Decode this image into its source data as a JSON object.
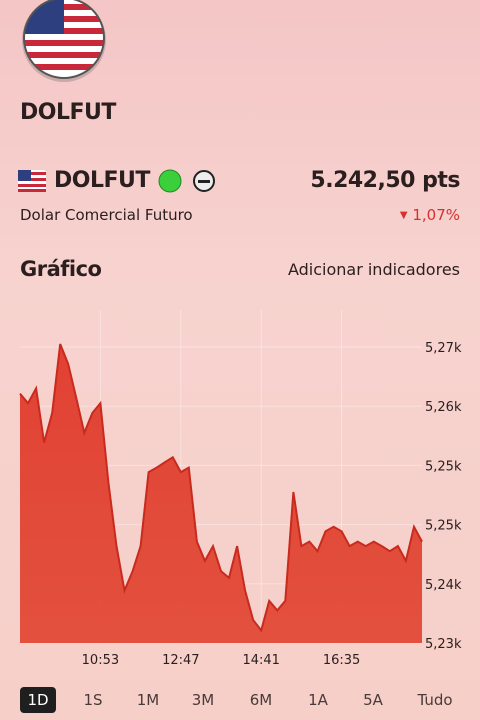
{
  "header": {
    "title": "DOLFUT"
  },
  "quote": {
    "symbol": "DOLFUT",
    "price": "5.242,50 pts",
    "description": "Dolar Comercial Futuro",
    "change": "1,07%"
  },
  "section": {
    "title": "Gráfico",
    "action": "Adicionar indicadores"
  },
  "chart_data": {
    "type": "area",
    "color": "#e0392b",
    "line_color": "#c92a1e",
    "grid": true,
    "categories": [
      null,
      null,
      null,
      null,
      null,
      null,
      null,
      null,
      null,
      null,
      "10:53",
      null,
      null,
      null,
      null,
      null,
      null,
      null,
      null,
      null,
      "12:47",
      null,
      null,
      null,
      null,
      null,
      null,
      null,
      null,
      null,
      "14:41",
      null,
      null,
      null,
      null,
      null,
      null,
      null,
      null,
      null,
      "16:35",
      null,
      null,
      null,
      null,
      null,
      null,
      null,
      null,
      null,
      null
    ],
    "values": [
      5263.7,
      5262.4,
      5264.4,
      5257.1,
      5261.1,
      5270.4,
      5267.7,
      5263.1,
      5258.4,
      5261.1,
      5262.4,
      5251.7,
      5243.1,
      5237.1,
      5239.7,
      5243.1,
      5253.1,
      5253.7,
      5254.4,
      5255.1,
      5253.1,
      5253.7,
      5243.7,
      5241.1,
      5243.1,
      5239.7,
      5238.8,
      5243.1,
      5237.1,
      5233.1,
      5231.7,
      5235.7,
      5234.4,
      5235.7,
      5250.4,
      5243.1,
      5243.7,
      5242.4,
      5245.1,
      5245.7,
      5245.1,
      5243.1,
      5243.7,
      5243.1,
      5243.7,
      5243.1,
      5242.4,
      5243.1,
      5241.1,
      5245.7,
      5243.7
    ],
    "ylim": [
      5230,
      5275
    ],
    "yticks": [
      {
        "value": 5230,
        "label": "5,23k"
      },
      {
        "value": 5238,
        "label": "5,24k"
      },
      {
        "value": 5246,
        "label": "5,25k"
      },
      {
        "value": 5254,
        "label": "5,25k"
      },
      {
        "value": 5262,
        "label": "5,26k"
      },
      {
        "value": 5270,
        "label": "5,27k"
      }
    ]
  },
  "range_tabs": {
    "options": [
      "1D",
      "1S",
      "1M",
      "3M",
      "6M",
      "1A",
      "5A",
      "Tudo"
    ],
    "selected": 0
  }
}
